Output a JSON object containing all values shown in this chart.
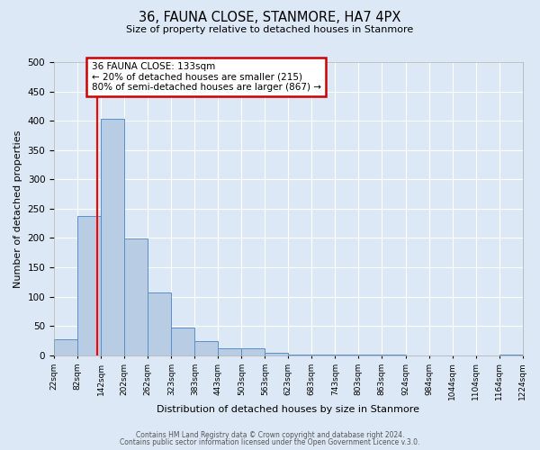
{
  "title": "36, FAUNA CLOSE, STANMORE, HA7 4PX",
  "subtitle": "Size of property relative to detached houses in Stanmore",
  "xlabel": "Distribution of detached houses by size in Stanmore",
  "ylabel": "Number of detached properties",
  "bin_edges": [
    22,
    82,
    142,
    202,
    262,
    323,
    383,
    443,
    503,
    563,
    623,
    683,
    743,
    803,
    863,
    924,
    984,
    1044,
    1104,
    1164,
    1224
  ],
  "bin_labels": [
    "22sqm",
    "82sqm",
    "142sqm",
    "202sqm",
    "262sqm",
    "323sqm",
    "383sqm",
    "443sqm",
    "503sqm",
    "563sqm",
    "623sqm",
    "683sqm",
    "743sqm",
    "803sqm",
    "863sqm",
    "924sqm",
    "984sqm",
    "1044sqm",
    "1104sqm",
    "1164sqm",
    "1224sqm"
  ],
  "bar_heights": [
    27,
    238,
    403,
    199,
    107,
    48,
    25,
    12,
    12,
    4,
    2,
    2,
    1,
    1,
    1,
    0,
    0,
    0,
    0,
    2
  ],
  "bar_color": "#b8cce4",
  "bar_edge_color": "#5b8fc9",
  "red_line_x": 133,
  "annotation_title": "36 FAUNA CLOSE: 133sqm",
  "annotation_line1": "← 20% of detached houses are smaller (215)",
  "annotation_line2": "80% of semi-detached houses are larger (867) →",
  "annotation_box_color": "#ffffff",
  "annotation_box_edge": "#cc0000",
  "ylim": [
    0,
    500
  ],
  "background_color": "#dce8f5",
  "footer1": "Contains HM Land Registry data © Crown copyright and database right 2024.",
  "footer2": "Contains public sector information licensed under the Open Government Licence v.3.0."
}
